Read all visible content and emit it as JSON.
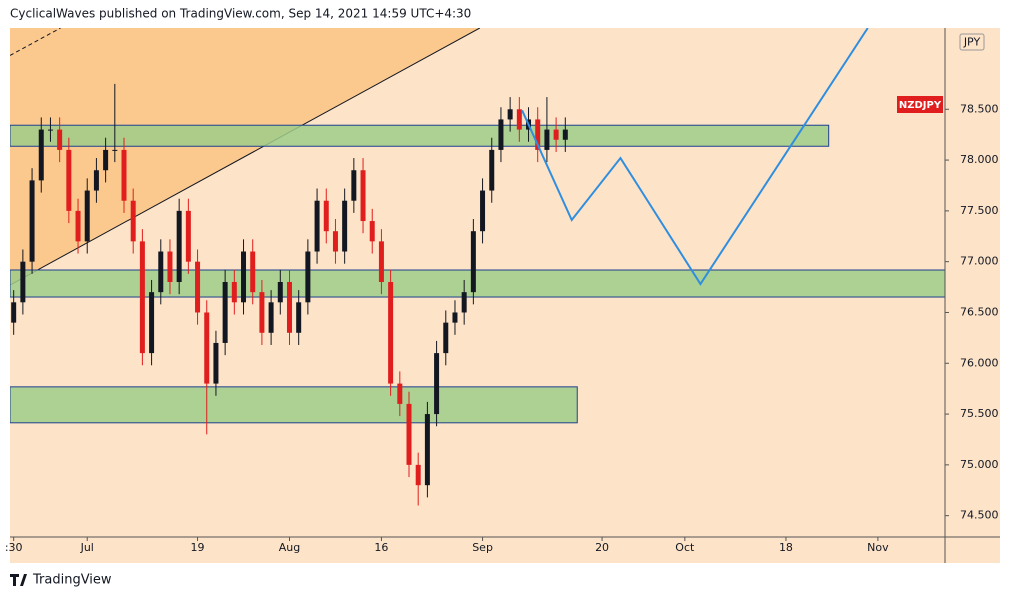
{
  "chart_data": {
    "type": "candlestick",
    "header": "CyclicalWaves published on TradingView.com, Sep 14, 2021 14:59 UTC+4:30",
    "symbol": "NZDJPY",
    "currency": "JPY",
    "brand": "TradingView",
    "x": [
      -8,
      -7,
      -6,
      -5,
      -4,
      -3,
      -2,
      -1,
      0,
      1,
      2,
      3,
      4,
      5,
      6,
      7,
      8,
      9,
      10,
      11,
      12,
      13,
      14,
      15,
      16,
      17,
      18,
      19,
      20,
      21,
      22,
      23,
      24,
      25,
      26,
      27,
      28,
      29,
      30,
      31,
      32,
      33,
      34,
      35,
      36,
      37,
      38,
      39,
      40,
      41,
      42,
      43,
      44,
      45,
      46,
      47,
      48,
      49,
      50,
      51,
      52
    ],
    "open": [
      76.4,
      76.6,
      77.0,
      77.8,
      78.3,
      78.3,
      78.1,
      77.5,
      77.2,
      77.7,
      77.9,
      78.1,
      78.1,
      77.6,
      77.2,
      76.1,
      76.7,
      77.1,
      76.8,
      77.5,
      77.0,
      76.5,
      75.8,
      76.2,
      76.8,
      76.6,
      77.1,
      76.7,
      76.3,
      76.6,
      76.8,
      76.3,
      76.6,
      77.1,
      77.6,
      77.3,
      77.1,
      77.6,
      77.9,
      77.4,
      77.2,
      76.8,
      75.8,
      75.6,
      75.0,
      74.8,
      75.5,
      76.1,
      76.4,
      76.5,
      76.7,
      77.3,
      77.7,
      78.1,
      78.4,
      78.5,
      78.3,
      78.4,
      78.1,
      78.3,
      78.2
    ],
    "high": [
      76.72,
      77.12,
      77.92,
      78.42,
      78.42,
      78.42,
      78.22,
      77.62,
      77.82,
      78.02,
      78.22,
      78.75,
      78.22,
      77.72,
      77.32,
      76.82,
      77.22,
      77.22,
      77.62,
      77.62,
      77.12,
      76.62,
      76.32,
      76.92,
      76.92,
      77.22,
      77.22,
      76.82,
      76.72,
      76.92,
      76.92,
      76.72,
      77.22,
      77.72,
      77.72,
      77.42,
      77.72,
      78.02,
      78.02,
      77.52,
      77.32,
      76.92,
      75.92,
      75.72,
      75.12,
      75.62,
      76.22,
      76.52,
      76.62,
      76.82,
      77.42,
      77.82,
      78.22,
      78.52,
      78.62,
      78.62,
      78.52,
      78.52,
      78.62,
      78.42,
      78.42
    ],
    "low": [
      76.28,
      76.48,
      76.88,
      77.68,
      78.18,
      77.98,
      77.38,
      77.08,
      77.08,
      77.58,
      77.78,
      77.98,
      77.48,
      77.08,
      75.98,
      75.98,
      76.58,
      76.68,
      76.68,
      76.88,
      76.38,
      75.3,
      75.68,
      76.08,
      76.48,
      76.48,
      76.58,
      76.18,
      76.18,
      76.48,
      76.18,
      76.18,
      76.48,
      76.98,
      77.18,
      76.98,
      76.98,
      77.48,
      77.28,
      77.08,
      76.68,
      75.68,
      75.48,
      74.88,
      74.6,
      74.68,
      75.38,
      75.98,
      76.28,
      76.38,
      76.58,
      77.18,
      77.58,
      77.98,
      78.28,
      78.18,
      78.18,
      77.98,
      77.98,
      78.08,
      78.08
    ],
    "close": [
      76.6,
      77.0,
      77.8,
      78.3,
      78.3,
      78.1,
      77.5,
      77.2,
      77.7,
      77.9,
      78.1,
      78.1,
      77.6,
      77.2,
      76.1,
      76.7,
      77.1,
      76.8,
      77.5,
      77.0,
      76.5,
      75.8,
      76.2,
      76.8,
      76.6,
      77.1,
      76.7,
      76.3,
      76.6,
      76.8,
      76.3,
      76.6,
      77.1,
      77.6,
      77.3,
      77.1,
      77.6,
      77.9,
      77.4,
      77.2,
      76.8,
      75.8,
      75.6,
      75.0,
      74.8,
      75.5,
      76.1,
      76.4,
      76.5,
      76.7,
      77.3,
      77.7,
      78.1,
      78.4,
      78.5,
      78.3,
      78.4,
      78.1,
      78.3,
      78.2,
      78.3
    ],
    "up_color": "#131722",
    "down_color": "#e01e1e",
    "zones": [
      {
        "x": [
          -8.4,
          80.65
        ],
        "y": [
          78.136,
          78.343
        ]
      },
      {
        "x": [
          -8.4,
          93.3
        ],
        "y": [
          76.652,
          76.918
        ]
      },
      {
        "x": [
          -8.4,
          53.3
        ],
        "y": [
          75.414,
          75.768
        ]
      }
    ],
    "zone_color": "#9fcc8a",
    "projection": {
      "x": [
        47.3,
        52.7,
        58.0,
        66.7,
        84.9
      ],
      "y": [
        78.49,
        77.41,
        78.02,
        76.78,
        79.3
      ],
      "color": "#2f8ee0"
    },
    "trendline": {
      "x": [
        -8.4,
        42.7
      ],
      "y": [
        76.77,
        79.3
      ]
    },
    "dashed_line": {
      "x": [
        -8.4,
        -2.9
      ],
      "y": [
        79.03,
        79.3
      ]
    },
    "xlim": [
      -8.4,
      93.3
    ],
    "ylim": [
      74.29,
      79.3
    ],
    "xticks": [
      {
        "value": -8,
        "label": ":30"
      },
      {
        "value": 0,
        "label": "Jul"
      },
      {
        "value": 12,
        "label": "19"
      },
      {
        "value": 22,
        "label": "Aug"
      },
      {
        "value": 32,
        "label": "16"
      },
      {
        "value": 43,
        "label": "Sep"
      },
      {
        "value": 56,
        "label": "20"
      },
      {
        "value": 65,
        "label": "Oct"
      },
      {
        "value": 76,
        "label": "18"
      },
      {
        "value": 86,
        "label": "Nov"
      }
    ],
    "yticks": [
      {
        "value": 74.5,
        "label": "74.500"
      },
      {
        "value": 75,
        "label": "75.000"
      },
      {
        "value": 75.5,
        "label": "75.500"
      },
      {
        "value": 76,
        "label": "76.000"
      },
      {
        "value": 76.5,
        "label": "76.500"
      },
      {
        "value": 77,
        "label": "77.000"
      },
      {
        "value": 77.5,
        "label": "77.500"
      },
      {
        "value": 78,
        "label": "78.000"
      },
      {
        "value": 78.5,
        "label": "78.500"
      }
    ]
  }
}
